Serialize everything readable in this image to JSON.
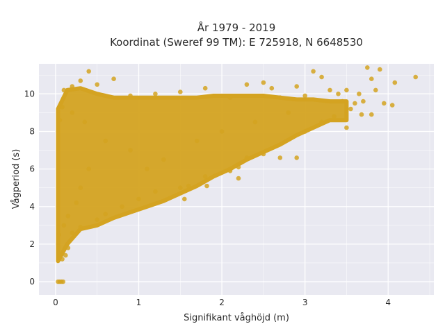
{
  "chart_data": {
    "type": "scatter",
    "title_lines": [
      "År 1979 - 2019",
      "Koordinat (Sweref 99 TM): E 725918, N 6648530"
    ],
    "xlabel": "Signifikant våghöjd (m)",
    "ylabel": "Vågperiod (s)",
    "xlim": [
      -0.2,
      4.55
    ],
    "ylim": [
      -0.7,
      11.6
    ],
    "x_ticks": [
      0,
      1,
      2,
      3,
      4
    ],
    "x_tick_labels": [
      "0",
      "1",
      "2",
      "3",
      "4"
    ],
    "y_ticks": [
      0,
      2,
      4,
      6,
      8,
      10
    ],
    "y_tick_labels": [
      "0",
      "2",
      "4",
      "6",
      "8",
      "10"
    ],
    "grid": true,
    "background": "#e9e9f1",
    "point_color": "#d4a321",
    "series": [
      {
        "points": [
          [
            0.03,
            0.0
          ],
          [
            0.05,
            0.0
          ],
          [
            0.07,
            0.0
          ],
          [
            0.09,
            0.0
          ],
          [
            0.05,
            1.3
          ],
          [
            0.08,
            1.2
          ],
          [
            0.12,
            1.4
          ],
          [
            0.15,
            1.8
          ],
          [
            0.04,
            2.5
          ],
          [
            0.1,
            3.0
          ],
          [
            0.2,
            2.6
          ],
          [
            0.3,
            2.9
          ],
          [
            0.05,
            8.6
          ],
          [
            0.08,
            9.3
          ],
          [
            0.1,
            10.2
          ],
          [
            0.2,
            10.4
          ],
          [
            0.3,
            10.7
          ],
          [
            0.4,
            11.2
          ],
          [
            0.5,
            10.5
          ],
          [
            0.7,
            10.8
          ],
          [
            0.9,
            9.9
          ],
          [
            1.2,
            10.0
          ],
          [
            1.5,
            10.1
          ],
          [
            1.8,
            10.3
          ],
          [
            2.1,
            9.8
          ],
          [
            2.3,
            10.5
          ],
          [
            2.5,
            10.6
          ],
          [
            2.6,
            10.3
          ],
          [
            2.7,
            9.8
          ],
          [
            2.9,
            10.4
          ],
          [
            3.0,
            9.9
          ],
          [
            3.1,
            11.2
          ],
          [
            3.2,
            10.9
          ],
          [
            3.3,
            10.2
          ],
          [
            3.4,
            10.0
          ],
          [
            3.5,
            10.2
          ],
          [
            3.6,
            9.5
          ],
          [
            3.65,
            10.0
          ],
          [
            3.7,
            9.6
          ],
          [
            3.75,
            11.4
          ],
          [
            3.8,
            10.8
          ],
          [
            3.85,
            10.2
          ],
          [
            3.9,
            11.3
          ],
          [
            3.95,
            9.5
          ],
          [
            4.05,
            9.4
          ],
          [
            4.08,
            10.6
          ],
          [
            4.33,
            10.9
          ],
          [
            3.2,
            8.5
          ],
          [
            3.35,
            8.8
          ],
          [
            3.5,
            8.2
          ],
          [
            3.55,
            9.2
          ],
          [
            3.68,
            8.9
          ],
          [
            3.8,
            8.9
          ],
          [
            3.45,
            9.6
          ],
          [
            3.0,
            8.0
          ],
          [
            2.9,
            6.6
          ],
          [
            2.7,
            6.6
          ],
          [
            2.5,
            6.8
          ],
          [
            2.3,
            6.6
          ],
          [
            2.2,
            6.1
          ],
          [
            2.1,
            5.9
          ],
          [
            1.8,
            5.6
          ],
          [
            1.6,
            5.1
          ],
          [
            1.5,
            5.0
          ],
          [
            1.2,
            4.8
          ],
          [
            1.0,
            4.4
          ],
          [
            0.8,
            4.0
          ],
          [
            0.6,
            3.6
          ],
          [
            0.5,
            3.3
          ],
          [
            1.55,
            4.4
          ],
          [
            1.82,
            5.1
          ],
          [
            2.2,
            5.5
          ],
          [
            0.9,
            7.0
          ],
          [
            1.1,
            6.0
          ],
          [
            1.3,
            6.5
          ],
          [
            1.7,
            7.5
          ],
          [
            2.0,
            8.0
          ],
          [
            2.4,
            8.5
          ],
          [
            2.8,
            9.0
          ],
          [
            0.3,
            5.0
          ],
          [
            0.4,
            6.0
          ],
          [
            0.6,
            7.5
          ],
          [
            0.2,
            9.0
          ],
          [
            0.35,
            8.5
          ],
          [
            0.15,
            3.5
          ],
          [
            0.25,
            4.2
          ]
        ]
      }
    ],
    "density_bands": [
      {
        "x_min": 0.03,
        "x_max": 0.14,
        "y_min": 1.1,
        "y_max": 9.2
      },
      {
        "x_min": 0.14,
        "x_max": 0.3,
        "y_min": 2.0,
        "y_max": 10.2
      },
      {
        "x_min": 0.3,
        "x_max": 0.5,
        "y_min": 2.8,
        "y_max": 10.3
      },
      {
        "x_min": 0.5,
        "x_max": 0.7,
        "y_min": 3.0,
        "y_max": 10.0
      },
      {
        "x_min": 0.7,
        "x_max": 0.9,
        "y_min": 3.4,
        "y_max": 9.8
      },
      {
        "x_min": 0.9,
        "x_max": 1.1,
        "y_min": 3.7,
        "y_max": 9.8
      },
      {
        "x_min": 1.1,
        "x_max": 1.3,
        "y_min": 4.0,
        "y_max": 9.8
      },
      {
        "x_min": 1.3,
        "x_max": 1.5,
        "y_min": 4.3,
        "y_max": 9.8
      },
      {
        "x_min": 1.5,
        "x_max": 1.7,
        "y_min": 4.7,
        "y_max": 9.8
      },
      {
        "x_min": 1.7,
        "x_max": 1.9,
        "y_min": 5.1,
        "y_max": 9.8
      },
      {
        "x_min": 1.9,
        "x_max": 2.1,
        "y_min": 5.6,
        "y_max": 9.9
      },
      {
        "x_min": 2.1,
        "x_max": 2.3,
        "y_min": 6.0,
        "y_max": 9.9
      },
      {
        "x_min": 2.3,
        "x_max": 2.5,
        "y_min": 6.5,
        "y_max": 9.9
      },
      {
        "x_min": 2.5,
        "x_max": 2.7,
        "y_min": 6.9,
        "y_max": 9.9
      },
      {
        "x_min": 2.7,
        "x_max": 2.9,
        "y_min": 7.3,
        "y_max": 9.8
      },
      {
        "x_min": 2.9,
        "x_max": 3.1,
        "y_min": 7.8,
        "y_max": 9.7
      },
      {
        "x_min": 3.1,
        "x_max": 3.3,
        "y_min": 8.2,
        "y_max": 9.7
      },
      {
        "x_min": 3.3,
        "x_max": 3.5,
        "y_min": 8.6,
        "y_max": 9.6
      }
    ]
  }
}
